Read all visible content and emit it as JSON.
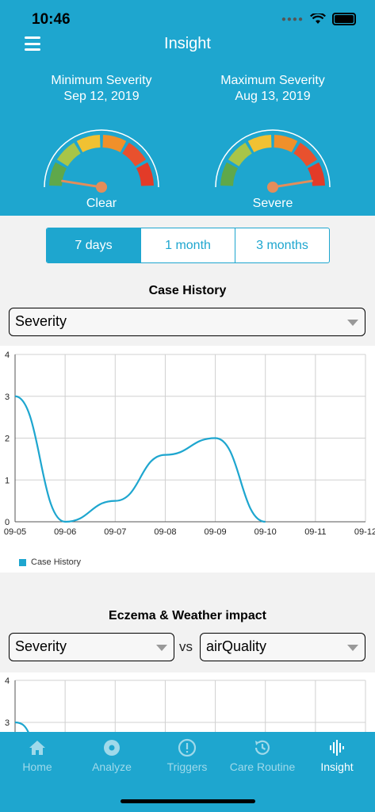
{
  "status_bar": {
    "time": "10:46"
  },
  "header": {
    "title": "Insight",
    "min_gauge": {
      "label": "Minimum Severity",
      "date": "Sep 12, 2019",
      "value": "Clear",
      "level": 0.05
    },
    "max_gauge": {
      "label": "Maximum Severity",
      "date": "Aug 13, 2019",
      "value": "Severe",
      "level": 0.95
    }
  },
  "range_tabs": [
    "7 days",
    "1 month",
    "3 months"
  ],
  "case_history": {
    "title": "Case History",
    "selector": "Severity",
    "legend": "Case History"
  },
  "weather": {
    "title": "Eczema & Weather impact",
    "left_selector": "Severity",
    "vs": "vs",
    "right_selector": "airQuality"
  },
  "tabbar": [
    {
      "label": "Home",
      "icon": "home-icon"
    },
    {
      "label": "Analyze",
      "icon": "analyze-icon"
    },
    {
      "label": "Triggers",
      "icon": "triggers-icon"
    },
    {
      "label": "Care Routine",
      "icon": "care-routine-icon"
    },
    {
      "label": "Insight",
      "icon": "insight-icon"
    }
  ],
  "colors": {
    "accent": "#1ea6cf",
    "tab_inactive": "#9fd9ea"
  },
  "chart_data": [
    {
      "type": "line",
      "categories": [
        "09-05",
        "09-06",
        "09-07",
        "09-08",
        "09-09",
        "09-10",
        "09-11",
        "09-12"
      ],
      "series": [
        {
          "name": "Case History",
          "values": [
            3,
            0,
            0.5,
            1.6,
            2,
            0,
            null,
            null
          ]
        }
      ],
      "ylim": [
        0,
        4
      ],
      "yticks": [
        "0",
        "1",
        "2",
        "3",
        "4"
      ],
      "grid": true,
      "legend": "bottom-left"
    },
    {
      "type": "line",
      "series": [
        {
          "values": [
            3
          ]
        }
      ],
      "ylim": [
        0,
        4
      ],
      "yticks": [
        "3",
        "4"
      ],
      "grid": true
    }
  ]
}
